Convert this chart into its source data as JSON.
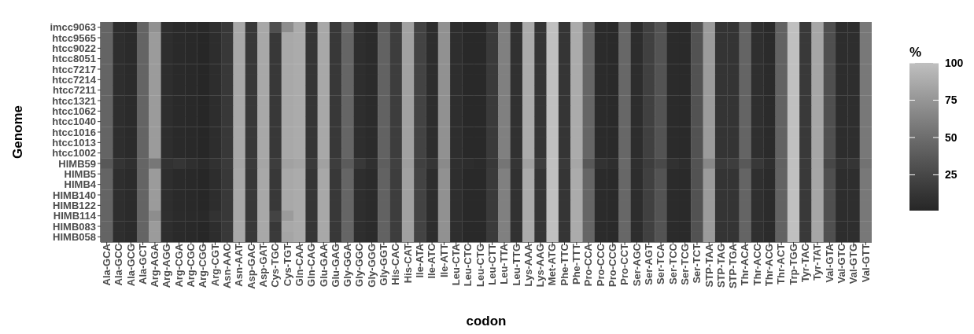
{
  "chart_data": {
    "type": "heatmap",
    "xlabel": "codon",
    "ylabel": "Genome",
    "clabel": "%",
    "categories": [
      "Ala-GCA",
      "Ala-GCC",
      "Ala-GCG",
      "Ala-GCT",
      "Arg-AGA",
      "Arg-AGG",
      "Arg-CGA",
      "Arg-CGC",
      "Arg-CGG",
      "Arg-CGT",
      "Asn-AAC",
      "Asn-AAT",
      "Asp-GAC",
      "Asp-GAT",
      "Cys-TGC",
      "Cys-TGT",
      "Gln-CAA",
      "Gln-CAG",
      "Glu-GAA",
      "Glu-GAG",
      "Gly-GGA",
      "Gly-GGC",
      "Gly-GGG",
      "Gly-GGT",
      "His-CAC",
      "His-CAT",
      "Ile-ATA",
      "Ile-ATC",
      "Ile-ATT",
      "Leu-CTA",
      "Leu-CTC",
      "Leu-CTG",
      "Leu-CTT",
      "Leu-TTA",
      "Leu-TTG",
      "Lys-AAA",
      "Lys-AAG",
      "Met-ATG",
      "Phe-TTC",
      "Phe-TTT",
      "Pro-CCA",
      "Pro-CCC",
      "Pro-CCG",
      "Pro-CCT",
      "Ser-AGC",
      "Ser-AGT",
      "Ser-TCA",
      "Ser-TCC",
      "Ser-TCG",
      "Ser-TCT",
      "STP-TAA",
      "STP-TAG",
      "STP-TGA",
      "Thr-ACA",
      "Thr-ACC",
      "Thr-ACG",
      "Thr-ACT",
      "Trp-TGG",
      "Tyr-TAC",
      "Tyr-TAT",
      "Val-GTA",
      "Val-GTC",
      "Val-GTG",
      "Val-GTT"
    ],
    "y_categories": [
      "imcc9063",
      "htcc9565",
      "htcc9022",
      "htcc8051",
      "htcc7217",
      "htcc7214",
      "htcc7211",
      "htcc1321",
      "htcc1062",
      "htcc1040",
      "htcc1016",
      "htcc1013",
      "htcc1002",
      "HIMB59",
      "HIMB5",
      "HIMB4",
      "HIMB140",
      "HIMB122",
      "HIMB114",
      "HIMB083",
      "HIMB058"
    ],
    "cells": [
      [
        44,
        7,
        5,
        44,
        72,
        8,
        5,
        4,
        3,
        8,
        14,
        86,
        14,
        86,
        30,
        70,
        88,
        12,
        86,
        14,
        48,
        7,
        5,
        40,
        18,
        82,
        22,
        6,
        72,
        7,
        3,
        3,
        16,
        62,
        9,
        88,
        12,
        100,
        12,
        88,
        45,
        5,
        4,
        46,
        6,
        20,
        33,
        5,
        4,
        32,
        78,
        11,
        11,
        44,
        8,
        5,
        43,
        100,
        15,
        85,
        30,
        6,
        7,
        57
      ],
      [
        44,
        7,
        5,
        44,
        78,
        7,
        4,
        3,
        2,
        6,
        14,
        86,
        14,
        86,
        14,
        86,
        88,
        12,
        86,
        14,
        45,
        7,
        5,
        43,
        18,
        82,
        22,
        6,
        72,
        7,
        3,
        3,
        16,
        62,
        9,
        88,
        12,
        100,
        12,
        88,
        45,
        5,
        4,
        46,
        6,
        20,
        33,
        5,
        4,
        32,
        78,
        11,
        11,
        44,
        8,
        5,
        43,
        100,
        15,
        85,
        30,
        6,
        7,
        57
      ],
      [
        44,
        7,
        5,
        44,
        78,
        7,
        4,
        3,
        2,
        6,
        14,
        86,
        14,
        86,
        14,
        86,
        88,
        12,
        86,
        14,
        45,
        7,
        5,
        43,
        18,
        82,
        22,
        6,
        72,
        7,
        3,
        3,
        16,
        62,
        9,
        88,
        12,
        100,
        12,
        88,
        45,
        5,
        4,
        46,
        6,
        20,
        33,
        5,
        4,
        32,
        78,
        11,
        11,
        44,
        8,
        5,
        43,
        100,
        15,
        85,
        30,
        6,
        7,
        57
      ],
      [
        44,
        7,
        5,
        44,
        78,
        7,
        4,
        3,
        2,
        6,
        14,
        86,
        14,
        86,
        14,
        86,
        88,
        12,
        86,
        14,
        45,
        7,
        5,
        43,
        18,
        82,
        22,
        6,
        72,
        7,
        3,
        3,
        16,
        62,
        9,
        88,
        12,
        100,
        12,
        88,
        45,
        5,
        4,
        46,
        6,
        20,
        33,
        5,
        4,
        32,
        78,
        11,
        11,
        44,
        8,
        5,
        43,
        100,
        15,
        85,
        30,
        6,
        7,
        57
      ],
      [
        44,
        7,
        5,
        44,
        78,
        7,
        4,
        3,
        2,
        6,
        14,
        86,
        14,
        86,
        14,
        86,
        88,
        12,
        86,
        14,
        45,
        7,
        5,
        43,
        18,
        82,
        22,
        6,
        72,
        7,
        3,
        3,
        16,
        62,
        9,
        88,
        12,
        100,
        12,
        88,
        45,
        5,
        4,
        46,
        6,
        20,
        33,
        5,
        4,
        32,
        78,
        11,
        11,
        44,
        8,
        5,
        43,
        100,
        15,
        85,
        30,
        6,
        7,
        57
      ],
      [
        44,
        7,
        5,
        44,
        78,
        7,
        4,
        3,
        2,
        6,
        14,
        86,
        14,
        86,
        14,
        86,
        88,
        12,
        86,
        14,
        45,
        7,
        5,
        43,
        18,
        82,
        22,
        6,
        72,
        7,
        3,
        3,
        16,
        62,
        9,
        88,
        12,
        100,
        12,
        88,
        45,
        5,
        4,
        46,
        6,
        20,
        33,
        5,
        4,
        32,
        78,
        11,
        11,
        44,
        8,
        5,
        43,
        100,
        15,
        85,
        30,
        6,
        7,
        57
      ],
      [
        44,
        7,
        5,
        44,
        78,
        7,
        4,
        3,
        2,
        6,
        14,
        86,
        14,
        86,
        14,
        86,
        88,
        12,
        86,
        14,
        45,
        7,
        5,
        43,
        18,
        82,
        22,
        6,
        72,
        7,
        3,
        3,
        16,
        62,
        9,
        88,
        12,
        100,
        12,
        88,
        45,
        5,
        4,
        46,
        6,
        20,
        33,
        5,
        4,
        32,
        78,
        11,
        11,
        44,
        8,
        5,
        43,
        100,
        15,
        85,
        30,
        6,
        7,
        57
      ],
      [
        44,
        7,
        5,
        44,
        78,
        7,
        4,
        3,
        2,
        6,
        14,
        86,
        14,
        86,
        14,
        86,
        88,
        12,
        86,
        14,
        45,
        7,
        5,
        43,
        18,
        82,
        22,
        6,
        72,
        7,
        3,
        3,
        16,
        62,
        9,
        88,
        12,
        100,
        12,
        88,
        45,
        5,
        4,
        46,
        6,
        20,
        33,
        5,
        4,
        32,
        78,
        11,
        11,
        44,
        8,
        5,
        43,
        100,
        15,
        85,
        30,
        6,
        7,
        57
      ],
      [
        44,
        7,
        5,
        44,
        78,
        7,
        4,
        3,
        2,
        6,
        14,
        86,
        14,
        86,
        14,
        86,
        88,
        12,
        86,
        14,
        45,
        7,
        5,
        43,
        18,
        82,
        22,
        6,
        72,
        7,
        3,
        3,
        16,
        62,
        9,
        88,
        12,
        100,
        12,
        88,
        45,
        5,
        4,
        46,
        6,
        20,
        33,
        5,
        4,
        32,
        78,
        11,
        11,
        44,
        8,
        5,
        43,
        100,
        15,
        85,
        30,
        6,
        7,
        57
      ],
      [
        44,
        7,
        5,
        44,
        78,
        7,
        4,
        3,
        2,
        6,
        14,
        86,
        14,
        86,
        14,
        86,
        88,
        12,
        86,
        14,
        45,
        7,
        5,
        43,
        18,
        82,
        22,
        6,
        72,
        7,
        3,
        3,
        16,
        62,
        9,
        88,
        12,
        100,
        12,
        88,
        45,
        5,
        4,
        46,
        6,
        20,
        33,
        5,
        4,
        32,
        78,
        11,
        11,
        44,
        8,
        5,
        43,
        100,
        15,
        85,
        30,
        6,
        7,
        57
      ],
      [
        44,
        7,
        5,
        44,
        78,
        7,
        4,
        3,
        2,
        6,
        14,
        86,
        14,
        86,
        14,
        86,
        88,
        12,
        86,
        14,
        45,
        7,
        5,
        43,
        18,
        82,
        22,
        6,
        72,
        7,
        3,
        3,
        16,
        62,
        9,
        88,
        12,
        100,
        12,
        88,
        45,
        5,
        4,
        46,
        6,
        20,
        33,
        5,
        4,
        32,
        78,
        11,
        11,
        44,
        8,
        5,
        43,
        100,
        15,
        85,
        30,
        6,
        7,
        57
      ],
      [
        44,
        7,
        5,
        44,
        78,
        7,
        4,
        3,
        2,
        6,
        14,
        86,
        14,
        86,
        14,
        86,
        88,
        12,
        86,
        14,
        45,
        7,
        5,
        43,
        18,
        82,
        22,
        6,
        72,
        7,
        3,
        3,
        16,
        62,
        9,
        88,
        12,
        100,
        12,
        88,
        45,
        5,
        4,
        46,
        6,
        20,
        33,
        5,
        4,
        32,
        78,
        11,
        11,
        44,
        8,
        5,
        43,
        100,
        15,
        85,
        30,
        6,
        7,
        57
      ],
      [
        44,
        7,
        5,
        44,
        78,
        7,
        4,
        3,
        2,
        6,
        14,
        86,
        14,
        86,
        14,
        86,
        88,
        12,
        86,
        14,
        45,
        7,
        5,
        43,
        18,
        82,
        22,
        6,
        72,
        7,
        3,
        3,
        16,
        62,
        9,
        88,
        12,
        100,
        12,
        88,
        45,
        5,
        4,
        46,
        6,
        20,
        33,
        5,
        4,
        32,
        78,
        11,
        11,
        44,
        8,
        5,
        43,
        100,
        15,
        85,
        30,
        6,
        7,
        57
      ],
      [
        36,
        11,
        8,
        45,
        56,
        10,
        12,
        8,
        5,
        9,
        16,
        84,
        16,
        84,
        18,
        82,
        84,
        16,
        82,
        18,
        38,
        14,
        8,
        40,
        20,
        80,
        20,
        12,
        68,
        8,
        6,
        5,
        14,
        55,
        12,
        82,
        18,
        100,
        15,
        85,
        36,
        10,
        7,
        47,
        8,
        18,
        26,
        9,
        6,
        33,
        66,
        16,
        18,
        36,
        14,
        8,
        42,
        100,
        16,
        84,
        25,
        10,
        12,
        53
      ],
      [
        44,
        7,
        5,
        44,
        78,
        7,
        4,
        3,
        2,
        6,
        14,
        86,
        14,
        86,
        14,
        86,
        88,
        12,
        86,
        14,
        45,
        7,
        5,
        43,
        18,
        82,
        22,
        6,
        72,
        7,
        3,
        3,
        16,
        62,
        9,
        88,
        12,
        100,
        12,
        88,
        45,
        5,
        4,
        46,
        6,
        20,
        33,
        5,
        4,
        32,
        78,
        11,
        11,
        44,
        8,
        5,
        43,
        100,
        15,
        85,
        30,
        6,
        7,
        57
      ],
      [
        44,
        7,
        5,
        44,
        78,
        7,
        4,
        3,
        2,
        6,
        14,
        86,
        14,
        86,
        14,
        86,
        88,
        12,
        86,
        14,
        45,
        7,
        5,
        43,
        18,
        82,
        22,
        6,
        72,
        7,
        3,
        3,
        16,
        62,
        9,
        88,
        12,
        100,
        12,
        88,
        45,
        5,
        4,
        46,
        6,
        20,
        33,
        5,
        4,
        32,
        78,
        11,
        11,
        44,
        8,
        5,
        43,
        100,
        15,
        85,
        30,
        6,
        7,
        57
      ],
      [
        44,
        7,
        5,
        44,
        78,
        7,
        4,
        3,
        2,
        6,
        14,
        86,
        14,
        86,
        14,
        86,
        88,
        12,
        86,
        14,
        45,
        7,
        5,
        43,
        18,
        82,
        22,
        6,
        72,
        7,
        3,
        3,
        16,
        62,
        9,
        88,
        12,
        100,
        12,
        88,
        45,
        5,
        4,
        46,
        6,
        20,
        33,
        5,
        4,
        32,
        78,
        11,
        11,
        44,
        8,
        5,
        43,
        100,
        15,
        85,
        30,
        6,
        7,
        57
      ],
      [
        44,
        7,
        5,
        44,
        78,
        7,
        4,
        3,
        2,
        6,
        14,
        86,
        14,
        86,
        14,
        86,
        88,
        12,
        86,
        14,
        45,
        7,
        5,
        43,
        18,
        82,
        22,
        6,
        72,
        7,
        3,
        3,
        16,
        62,
        9,
        88,
        12,
        100,
        12,
        88,
        45,
        5,
        4,
        46,
        6,
        20,
        33,
        5,
        4,
        32,
        78,
        11,
        11,
        44,
        8,
        5,
        43,
        100,
        15,
        85,
        30,
        6,
        7,
        57
      ],
      [
        44,
        7,
        5,
        44,
        70,
        8,
        5,
        4,
        3,
        10,
        14,
        86,
        14,
        86,
        22,
        78,
        88,
        12,
        86,
        14,
        45,
        7,
        5,
        43,
        18,
        82,
        22,
        6,
        72,
        7,
        3,
        3,
        16,
        62,
        9,
        88,
        12,
        100,
        12,
        88,
        45,
        5,
        4,
        46,
        6,
        20,
        33,
        5,
        4,
        32,
        78,
        11,
        11,
        44,
        8,
        5,
        43,
        100,
        15,
        85,
        30,
        6,
        7,
        57
      ],
      [
        44,
        7,
        5,
        44,
        78,
        7,
        4,
        3,
        2,
        6,
        14,
        86,
        14,
        86,
        14,
        86,
        88,
        12,
        86,
        14,
        45,
        7,
        5,
        43,
        18,
        82,
        22,
        6,
        72,
        7,
        3,
        3,
        16,
        62,
        9,
        88,
        12,
        100,
        12,
        88,
        45,
        5,
        4,
        46,
        6,
        20,
        33,
        5,
        4,
        32,
        78,
        11,
        11,
        44,
        8,
        5,
        43,
        100,
        15,
        85,
        30,
        6,
        7,
        57
      ],
      [
        44,
        7,
        5,
        44,
        78,
        7,
        4,
        3,
        2,
        6,
        14,
        86,
        14,
        86,
        16,
        84,
        88,
        12,
        86,
        14,
        45,
        7,
        5,
        43,
        18,
        82,
        22,
        6,
        72,
        7,
        3,
        3,
        16,
        62,
        9,
        88,
        12,
        100,
        12,
        88,
        45,
        5,
        4,
        46,
        6,
        20,
        33,
        5,
        4,
        32,
        78,
        11,
        11,
        44,
        8,
        5,
        43,
        100,
        15,
        85,
        30,
        6,
        7,
        57
      ]
    ],
    "clim": [
      1,
      100
    ],
    "cticks": [
      25,
      50,
      75,
      100
    ]
  }
}
